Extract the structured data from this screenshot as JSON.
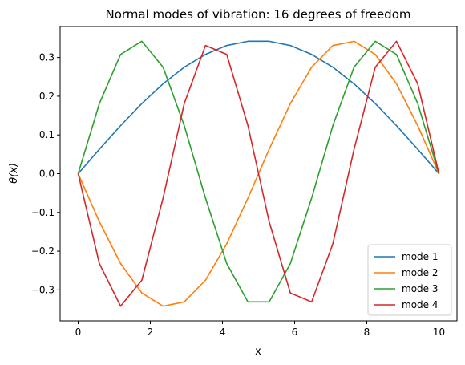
{
  "chart_data": {
    "type": "line",
    "title": "Normal modes of vibration: 16 degrees of freedom",
    "xlabel": "x",
    "ylabel": "θ(x)",
    "xlim": [
      -0.5,
      10.5
    ],
    "ylim": [
      -0.38,
      0.38
    ],
    "xticks": [
      "0",
      "2",
      "4",
      "6",
      "8",
      "10"
    ],
    "yticks": [
      "-0.3",
      "-0.2",
      "-0.1",
      "0.0",
      "0.1",
      "0.2",
      "0.3"
    ],
    "legend_position": "lower-right",
    "grid": false,
    "x": [
      0,
      0.588,
      1.176,
      1.765,
      2.353,
      2.941,
      3.529,
      4.118,
      4.706,
      5.294,
      5.882,
      6.471,
      7.059,
      7.647,
      8.235,
      8.824,
      9.412,
      10
    ],
    "series": [
      {
        "name": "mode 1",
        "color": "#1f77b4",
        "values": [
          0,
          0.063,
          0.124,
          0.181,
          0.232,
          0.275,
          0.308,
          0.331,
          0.342,
          0.342,
          0.331,
          0.308,
          0.275,
          0.232,
          0.181,
          0.124,
          0.063,
          0
        ]
      },
      {
        "name": "mode 2",
        "color": "#ff7f0e",
        "values": [
          0,
          -0.124,
          -0.232,
          -0.308,
          -0.342,
          -0.331,
          -0.275,
          -0.181,
          -0.063,
          0.063,
          0.181,
          0.275,
          0.331,
          0.342,
          0.308,
          0.232,
          0.124,
          0
        ]
      },
      {
        "name": "mode 3",
        "color": "#2ca02c",
        "values": [
          0,
          0.181,
          0.308,
          0.342,
          0.275,
          0.124,
          -0.063,
          -0.232,
          -0.331,
          -0.331,
          -0.232,
          -0.063,
          0.124,
          0.275,
          0.342,
          0.308,
          0.181,
          0
        ]
      },
      {
        "name": "mode 4",
        "color": "#d62728",
        "values": [
          0,
          -0.232,
          -0.342,
          -0.275,
          -0.063,
          0.181,
          0.331,
          0.308,
          0.124,
          -0.124,
          -0.308,
          -0.331,
          -0.181,
          0.063,
          0.275,
          0.342,
          0.232,
          0
        ]
      }
    ]
  }
}
